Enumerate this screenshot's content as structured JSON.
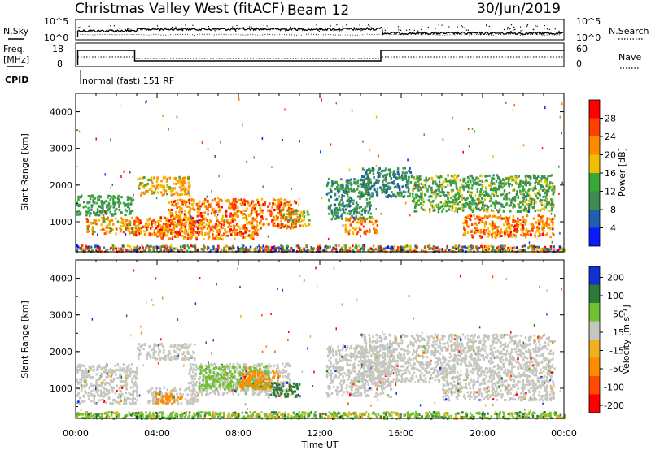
{
  "header": {
    "station": "Christmas Valley West (fitACF)",
    "beam": "Beam 12",
    "date": "30/Jun/2019"
  },
  "top_panels": {
    "sky_label": "N.Sky",
    "search_label": "N.Search",
    "sky_ticks": [
      "10^5",
      "10^0"
    ],
    "search_ticks": [
      "10^5",
      "10^0"
    ],
    "freq_label_1": "Freq.",
    "freq_label_2": "[MHz]",
    "freq_ticks": [
      "18",
      "8"
    ],
    "nave_label": "Nave",
    "nave_ticks": [
      "60",
      "0"
    ],
    "cpid_label": "CPID",
    "cpid_text": "normal (fast) 151 RF"
  },
  "colors": {
    "power": [
      "#0a1aff",
      "#1f5fb0",
      "#3d8c52",
      "#3aa838",
      "#f0c000",
      "#ff8a00",
      "#ff4000",
      "#ff0000"
    ],
    "velocity": [
      "#ff0000",
      "#ff4a00",
      "#ff8c00",
      "#f0b020",
      "#c6c6c0",
      "#70c030",
      "#2a7a3a",
      "#1030d0"
    ],
    "ground_scatter": "#c6c6c0"
  },
  "chart_data": [
    {
      "type": "heatmap",
      "title": "Power",
      "ylabel": "Slant Range [km]",
      "xlabel": "",
      "ylim": [
        180,
        4500
      ],
      "xlim": [
        0,
        24
      ],
      "yticks": [
        "4000",
        "3000",
        "2000",
        "1000"
      ],
      "colorbar_label": "Power [dB]",
      "colorbar_ticks": [
        "28",
        "24",
        "20",
        "16",
        "12",
        "8",
        "4"
      ],
      "colorbar_range": [
        0,
        32
      ],
      "scatter_regions": [
        {
          "t": [
            0.0,
            2.8
          ],
          "range": [
            1200,
            1750
          ],
          "power": [
            8,
            16
          ]
        },
        {
          "t": [
            0.5,
            3.2
          ],
          "range": [
            700,
            1150
          ],
          "power": [
            14,
            26
          ]
        },
        {
          "t": [
            2.8,
            5.8
          ],
          "range": [
            650,
            1150
          ],
          "power": [
            16,
            30
          ]
        },
        {
          "t": [
            3.0,
            5.6
          ],
          "range": [
            1750,
            2250
          ],
          "power": [
            14,
            24
          ]
        },
        {
          "t": [
            4.5,
            10.8
          ],
          "range": [
            850,
            1650
          ],
          "power": [
            16,
            30
          ]
        },
        {
          "t": [
            3.8,
            9.0
          ],
          "range": [
            550,
            850
          ],
          "power": [
            16,
            30
          ]
        },
        {
          "t": [
            10.0,
            11.5
          ],
          "range": [
            900,
            1350
          ],
          "power": [
            12,
            26
          ]
        },
        {
          "t": [
            12.3,
            14.5
          ],
          "range": [
            1100,
            2200
          ],
          "power": [
            6,
            16
          ]
        },
        {
          "t": [
            13.2,
            14.8
          ],
          "range": [
            700,
            1150
          ],
          "power": [
            16,
            28
          ]
        },
        {
          "t": [
            14.0,
            16.5
          ],
          "range": [
            1700,
            2500
          ],
          "power": [
            6,
            14
          ]
        },
        {
          "t": [
            16.5,
            23.5
          ],
          "range": [
            1300,
            2300
          ],
          "power": [
            8,
            18
          ]
        },
        {
          "t": [
            19.0,
            23.5
          ],
          "range": [
            600,
            1200
          ],
          "power": [
            16,
            30
          ]
        }
      ]
    },
    {
      "type": "heatmap",
      "title": "Velocity",
      "ylabel": "Slant Range [km]",
      "xlabel": "Time UT",
      "ylim": [
        180,
        4500
      ],
      "xlim": [
        0,
        24
      ],
      "yticks": [
        "4000",
        "3000",
        "2000",
        "1000"
      ],
      "xticks": [
        "00:00",
        "04:00",
        "08:00",
        "12:00",
        "16:00",
        "20:00",
        "00:00"
      ],
      "colorbar_label": "Velocity [m s⁻¹]",
      "colorbar_ticks": [
        "200",
        "100",
        "50",
        "15",
        "-15",
        "-50",
        "-100",
        "-200"
      ],
      "velocity_regions": [
        {
          "t": [
            0.0,
            3.0
          ],
          "range": [
            600,
            1700
          ],
          "class": "ground"
        },
        {
          "t": [
            3.0,
            5.8
          ],
          "range": [
            1800,
            2250
          ],
          "class": "ground"
        },
        {
          "t": [
            3.5,
            6.0
          ],
          "range": [
            600,
            1050
          ],
          "class": "ground"
        },
        {
          "t": [
            3.8,
            5.2
          ],
          "range": [
            600,
            900
          ],
          "class": "-50"
        },
        {
          "t": [
            5.5,
            10.5
          ],
          "range": [
            850,
            1700
          ],
          "class": "ground"
        },
        {
          "t": [
            6.0,
            9.5
          ],
          "range": [
            1000,
            1650
          ],
          "class": "15..50"
        },
        {
          "t": [
            8.0,
            10.0
          ],
          "range": [
            1000,
            1500
          ],
          "class": "-50"
        },
        {
          "t": [
            9.5,
            11.0
          ],
          "range": [
            800,
            1200
          ],
          "class": "50..100"
        },
        {
          "t": [
            12.3,
            15.5
          ],
          "range": [
            800,
            2200
          ],
          "class": "ground"
        },
        {
          "t": [
            14.0,
            23.5
          ],
          "range": [
            1200,
            2500
          ],
          "class": "ground"
        },
        {
          "t": [
            18.0,
            23.5
          ],
          "range": [
            700,
            1200
          ],
          "class": "ground"
        }
      ]
    }
  ]
}
